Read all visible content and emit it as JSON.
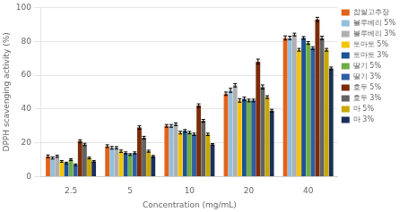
{
  "chart_data": {
    "type": "bar",
    "xlabel": "Concentration (mg/mL)",
    "ylabel": "DPPH scavenging activity (%)",
    "categories": [
      "2.5",
      "5",
      "10",
      "20",
      "40"
    ],
    "series": [
      {
        "name": "찹쌀고추장",
        "color": "#E2631A",
        "values": [
          12,
          18,
          30,
          49,
          82
        ],
        "errors": [
          0.8,
          0.8,
          0.8,
          1.0,
          1.2
        ]
      },
      {
        "name": "블루베리 5%",
        "color": "#92BFDF",
        "values": [
          11,
          17,
          30,
          51,
          82
        ],
        "errors": [
          0.6,
          0.8,
          0.8,
          1.2,
          1.0
        ]
      },
      {
        "name": "블루베리 3%",
        "color": "#B0B0B0",
        "values": [
          12,
          17,
          31,
          54,
          84
        ],
        "errors": [
          0.6,
          0.7,
          0.8,
          1.0,
          0.8
        ]
      },
      {
        "name": "토마토 5%",
        "color": "#F5C400",
        "values": [
          9,
          15,
          26,
          45,
          75
        ],
        "errors": [
          0.5,
          0.7,
          0.8,
          1.0,
          0.8
        ]
      },
      {
        "name": "토마토 3%",
        "color": "#1F5296",
        "values": [
          8,
          14,
          27,
          46,
          82
        ],
        "errors": [
          0.5,
          0.6,
          0.8,
          1.0,
          0.8
        ]
      },
      {
        "name": "딸기 5%",
        "color": "#70AD47",
        "values": [
          10,
          13,
          26,
          45,
          79
        ],
        "errors": [
          0.5,
          0.5,
          0.7,
          0.8,
          0.8
        ]
      },
      {
        "name": "딸기 3%",
        "color": "#2E5FA3",
        "values": [
          7,
          14,
          25,
          45,
          76
        ],
        "errors": [
          0.5,
          0.6,
          0.7,
          0.8,
          0.8
        ]
      },
      {
        "name": "호두 5%",
        "color": "#7B2C08",
        "values": [
          21,
          29,
          42,
          68,
          93
        ],
        "errors": [
          0.8,
          1.0,
          1.0,
          1.5,
          1.2
        ]
      },
      {
        "name": "호두 3%",
        "color": "#636363",
        "values": [
          19,
          23,
          33,
          53,
          82
        ],
        "errors": [
          0.7,
          0.8,
          0.8,
          1.2,
          1.0
        ]
      },
      {
        "name": "마 5%",
        "color": "#C8A800",
        "values": [
          11,
          15,
          25,
          47,
          75
        ],
        "errors": [
          0.5,
          0.6,
          0.7,
          0.8,
          0.8
        ]
      },
      {
        "name": "마 3%",
        "color": "#1A2F5A",
        "values": [
          9,
          12,
          19,
          39,
          64
        ],
        "errors": [
          0.5,
          0.5,
          0.5,
          0.8,
          0.8
        ]
      }
    ],
    "ylim": [
      0,
      100
    ],
    "yticks": [
      0,
      20,
      40,
      60,
      80,
      100
    ],
    "grid": true,
    "legend": "right"
  }
}
